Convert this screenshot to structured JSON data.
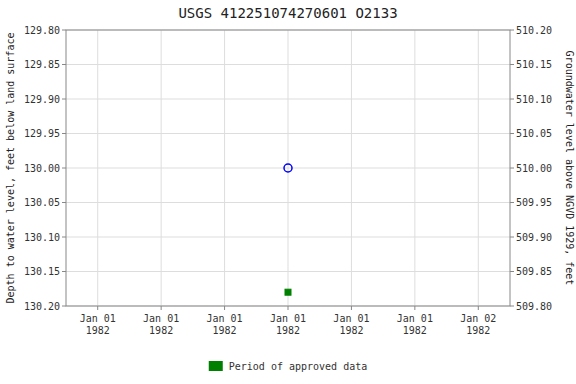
{
  "chart_data": {
    "type": "scatter",
    "title": "USGS 412251074270601 O2133",
    "categories": [
      "Jan 01\n1982",
      "Jan 01\n1982",
      "Jan 01\n1982",
      "Jan 01\n1982",
      "Jan 01\n1982",
      "Jan 01\n1982",
      "Jan 02\n1982"
    ],
    "y_label": "Depth to water level, feet below land surface",
    "y2_label": "Groundwater level above NGVD 1929, feet",
    "series": [
      {
        "color": "#0000ff",
        "marker": "circle",
        "values": [
          null,
          null,
          null,
          130.0,
          null,
          null,
          null
        ]
      },
      {
        "name": "Period of approved data",
        "color": "#008000",
        "marker": "square",
        "values": [
          null,
          null,
          null,
          130.18,
          null,
          null,
          null
        ]
      }
    ],
    "ylim": [
      130.2,
      129.8
    ],
    "yticks": [
      {
        "value": 129.8,
        "label": "129.80"
      },
      129.85,
      {
        "value": 129.9,
        "label": "129.90"
      },
      129.95,
      {
        "value": 130,
        "label": "130.00"
      },
      130.05,
      {
        "value": 130.1,
        "label": "130.10"
      },
      130.15,
      {
        "value": 130.2,
        "label": "130.20"
      }
    ],
    "y2lim": [
      509.8,
      510.2
    ],
    "y2ticks": [
      {
        "value": 510.2,
        "label": "510.20"
      },
      510.15,
      {
        "value": 510.1,
        "label": "510.10"
      },
      510.05,
      {
        "value": 510,
        "label": "510.00"
      },
      509.95,
      {
        "value": 509.9,
        "label": "509.90"
      },
      509.85,
      {
        "value": 509.8,
        "label": "509.80"
      }
    ],
    "grid": true,
    "legend": "bottom"
  }
}
